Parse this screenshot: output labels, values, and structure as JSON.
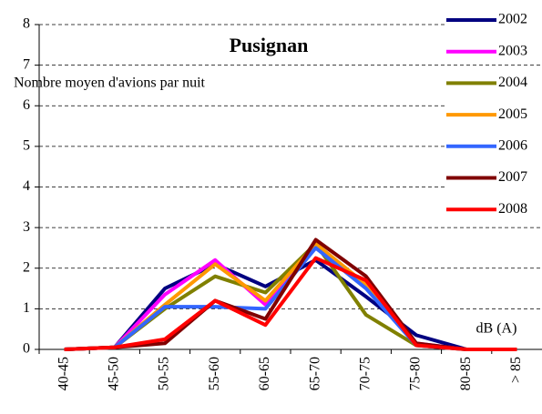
{
  "chart_data": {
    "type": "line",
    "title": "Pusignan",
    "subtitle": "Nombre moyen d'avions par nuit",
    "annotation": "dB (A)",
    "categories": [
      "40-45",
      "45-50",
      "50-55",
      "55-60",
      "60-65",
      "65-70",
      "70-75",
      "75-80",
      "80-85",
      "> 85"
    ],
    "series": [
      {
        "name": "2002",
        "color": "#000080",
        "values": [
          0,
          0.05,
          1.5,
          2.1,
          1.55,
          2.2,
          1.3,
          0.35,
          0,
          0
        ]
      },
      {
        "name": "2003",
        "color": "#ff00ff",
        "values": [
          0,
          0.05,
          1.35,
          2.2,
          1.1,
          2.5,
          1.6,
          0.15,
          0,
          0
        ]
      },
      {
        "name": "2004",
        "color": "#808000",
        "values": [
          0,
          0.05,
          1.0,
          1.8,
          1.4,
          2.6,
          0.85,
          0.1,
          0,
          0
        ]
      },
      {
        "name": "2005",
        "color": "#ff9900",
        "values": [
          0,
          0.05,
          1.1,
          2.1,
          1.2,
          2.6,
          1.6,
          0.1,
          0,
          0
        ]
      },
      {
        "name": "2006",
        "color": "#3366ff",
        "values": [
          0,
          0.05,
          1.05,
          1.05,
          1.0,
          2.5,
          1.5,
          0.1,
          0,
          0
        ]
      },
      {
        "name": "2007",
        "color": "#800000",
        "values": [
          0,
          0.05,
          0.15,
          1.2,
          0.75,
          2.7,
          1.8,
          0.15,
          0,
          0
        ]
      },
      {
        "name": "2008",
        "color": "#ff0000",
        "values": [
          0,
          0.05,
          0.25,
          1.2,
          0.6,
          2.25,
          1.7,
          0.1,
          0,
          0
        ]
      }
    ],
    "ylim": [
      0,
      8
    ],
    "yticks": [
      0,
      1,
      2,
      3,
      4,
      5,
      6,
      7,
      8
    ],
    "grid": true
  }
}
